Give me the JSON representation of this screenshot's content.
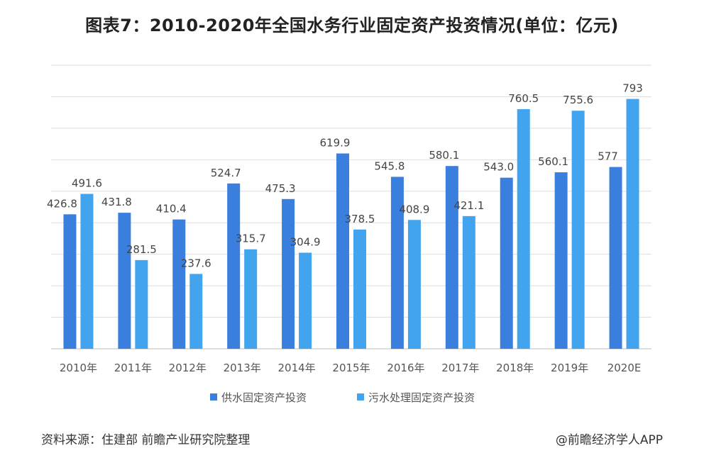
{
  "chart_data": {
    "type": "bar",
    "title": "图表7：2010-2020年全国水务行业固定资产投资情况(单位：亿元)",
    "categories": [
      "2010年",
      "2011年",
      "2012年",
      "2013年",
      "2014年",
      "2015年",
      "2016年",
      "2017年",
      "2018年",
      "2019年",
      "2020E"
    ],
    "series": [
      {
        "name": "供水固定资产投资",
        "color": "#3b7fde",
        "values": [
          426.8,
          431.8,
          410.4,
          524.7,
          475.3,
          619.9,
          545.8,
          580.1,
          543.0,
          560.1,
          577
        ],
        "labels": [
          "426.8",
          "431.8",
          "410.4",
          "524.7",
          "475.3",
          "619.9",
          "545.8",
          "580.1",
          "543.0",
          "560.1",
          "577"
        ]
      },
      {
        "name": "污水处理固定资产投资",
        "color": "#42a3ee",
        "values": [
          491.6,
          281.5,
          237.6,
          315.7,
          304.9,
          378.5,
          408.9,
          421.1,
          760.5,
          755.6,
          793
        ],
        "labels": [
          "491.6",
          "281.5",
          "237.6",
          "315.7",
          "304.9",
          "378.5",
          "408.9",
          "421.1",
          "760.5",
          "755.6",
          "793"
        ]
      }
    ],
    "ylim": [
      0,
      900
    ],
    "grid": true,
    "legend_position": "bottom"
  },
  "footer": {
    "source": "资料来源：住建部 前瞻产业研究院整理",
    "credit": "@前瞻经济学人APP"
  }
}
